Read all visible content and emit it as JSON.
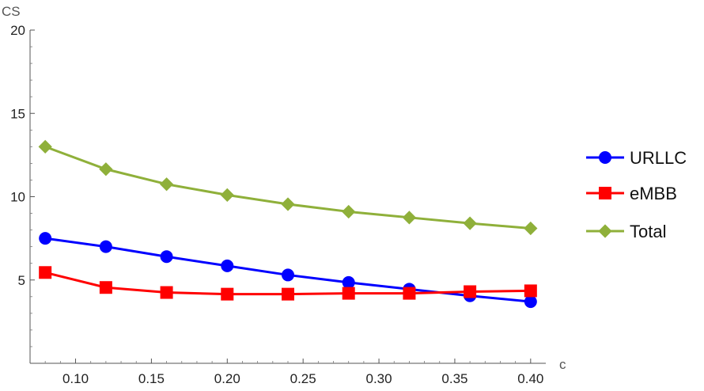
{
  "chart_data": {
    "type": "line",
    "title": "",
    "xlabel": "c",
    "ylabel": "CS",
    "xlim": [
      0.07,
      0.41
    ],
    "ylim": [
      0,
      20
    ],
    "x_ticks": [
      0.1,
      0.15,
      0.2,
      0.25,
      0.3,
      0.35,
      0.4
    ],
    "x_tick_labels": [
      "0.10",
      "0.15",
      "0.20",
      "0.25",
      "0.30",
      "0.35",
      "0.40"
    ],
    "y_ticks": [
      5,
      10,
      15,
      20
    ],
    "y_tick_labels": [
      "5",
      "10",
      "15",
      "20"
    ],
    "grid": false,
    "legend_position": "right",
    "x": [
      0.08,
      0.12,
      0.16,
      0.2,
      0.24,
      0.28,
      0.32,
      0.36,
      0.4
    ],
    "series": [
      {
        "name": "URLLC",
        "color": "#0000ff",
        "marker": "circle",
        "values": [
          7.5,
          7.0,
          6.4,
          5.85,
          5.3,
          4.85,
          4.45,
          4.05,
          3.7
        ]
      },
      {
        "name": "eMBB",
        "color": "#ff0000",
        "marker": "square",
        "values": [
          5.45,
          4.55,
          4.25,
          4.15,
          4.15,
          4.2,
          4.2,
          4.3,
          4.35
        ]
      },
      {
        "name": "Total",
        "color": "#8fb03a",
        "marker": "diamond",
        "values": [
          13.0,
          11.65,
          10.75,
          10.1,
          9.55,
          9.1,
          8.75,
          8.4,
          8.1
        ]
      }
    ]
  }
}
